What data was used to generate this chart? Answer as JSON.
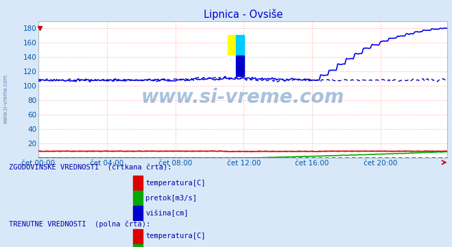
{
  "title": "Lipnica - Ovsiše",
  "title_color": "#0000cc",
  "bg_color": "#d8e8f8",
  "plot_bg_color": "#ffffff",
  "watermark_text": "www.si-vreme.com",
  "watermark_color": "#5588bb",
  "side_text": "www.si-vreme.com",
  "side_text_color": "#4477aa",
  "xlabel_color": "#0055aa",
  "ylim": [
    0,
    190
  ],
  "yticks": [
    20,
    40,
    60,
    80,
    100,
    120,
    140,
    160,
    180
  ],
  "xtick_labels": [
    "čet 00:00",
    "čet 04:00",
    "čet 08:00",
    "čet 12:00",
    "čet 16:00",
    "čet 20:00"
  ],
  "xtick_positions": [
    0,
    48,
    96,
    144,
    192,
    240
  ],
  "legend_hist_label": "ZGODOVINSKE VREDNOSTI  (črtkana črta):",
  "legend_curr_label": "TRENUTNE VREDNOSTI  (polna črta):",
  "legend_text_color": "#0000aa",
  "legend_items": [
    "temperatura[C]",
    "pretok[m3/s]",
    "višina[cm]"
  ],
  "legend_colors": [
    "#dd0000",
    "#00aa00",
    "#0000cc"
  ],
  "n_points": 288,
  "temp_hist_base": 9.5,
  "temp_curr_base": 9.5,
  "flow_hist_base": 0.4,
  "flow_curr_base": 0.3,
  "height_hist_base": 108.0,
  "height_curr_base": 108.0,
  "height_curr_rise_at": 192,
  "height_curr_rise_to": 180,
  "flow_curr_rise_at": 145,
  "flow_curr_rise_to": 8.5
}
